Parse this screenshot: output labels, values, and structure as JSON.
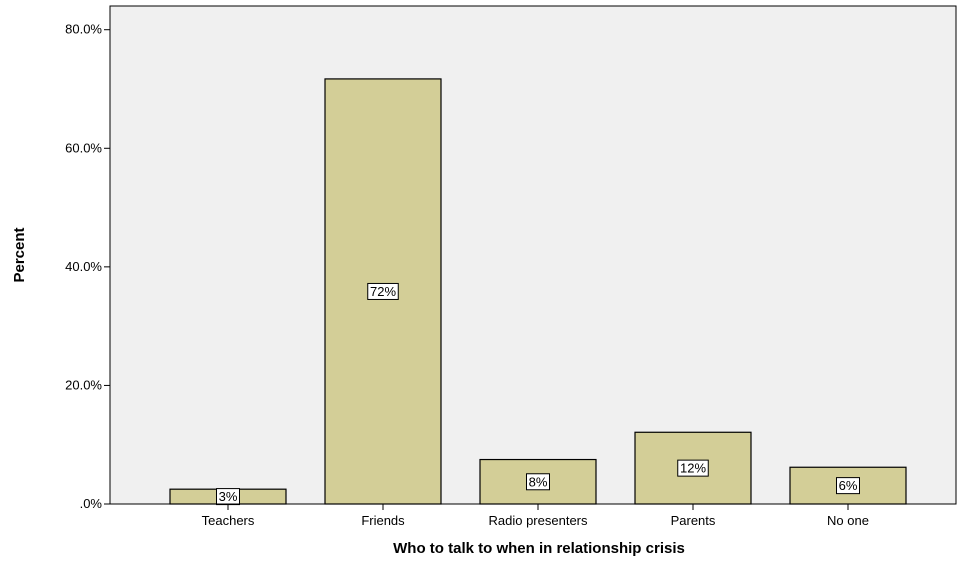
{
  "chart_data": {
    "type": "bar",
    "title": "",
    "xlabel": "Who to talk to when in relationship crisis",
    "ylabel": "Percent",
    "categories": [
      "Teachers",
      "Friends",
      "Radio presenters",
      "Parents",
      "No one"
    ],
    "values": [
      2.5,
      71.7,
      7.5,
      12.1,
      6.2
    ],
    "data_labels": [
      "3%",
      "72%",
      "8%",
      "12%",
      "6%"
    ],
    "y_ticks": [
      {
        "value": 0,
        "label": ".0%"
      },
      {
        "value": 20,
        "label": "20.0%"
      },
      {
        "value": 40,
        "label": "40.0%"
      },
      {
        "value": 60,
        "label": "60.0%"
      },
      {
        "value": 80,
        "label": "80.0%"
      }
    ],
    "ylim": [
      0,
      84
    ],
    "grid": false,
    "legend": "none",
    "colors": {
      "plot_background": "#f0f0f0",
      "bar_fill": "#d3ce97",
      "bar_stroke": "#000000",
      "label_box": "#ffffff"
    }
  }
}
